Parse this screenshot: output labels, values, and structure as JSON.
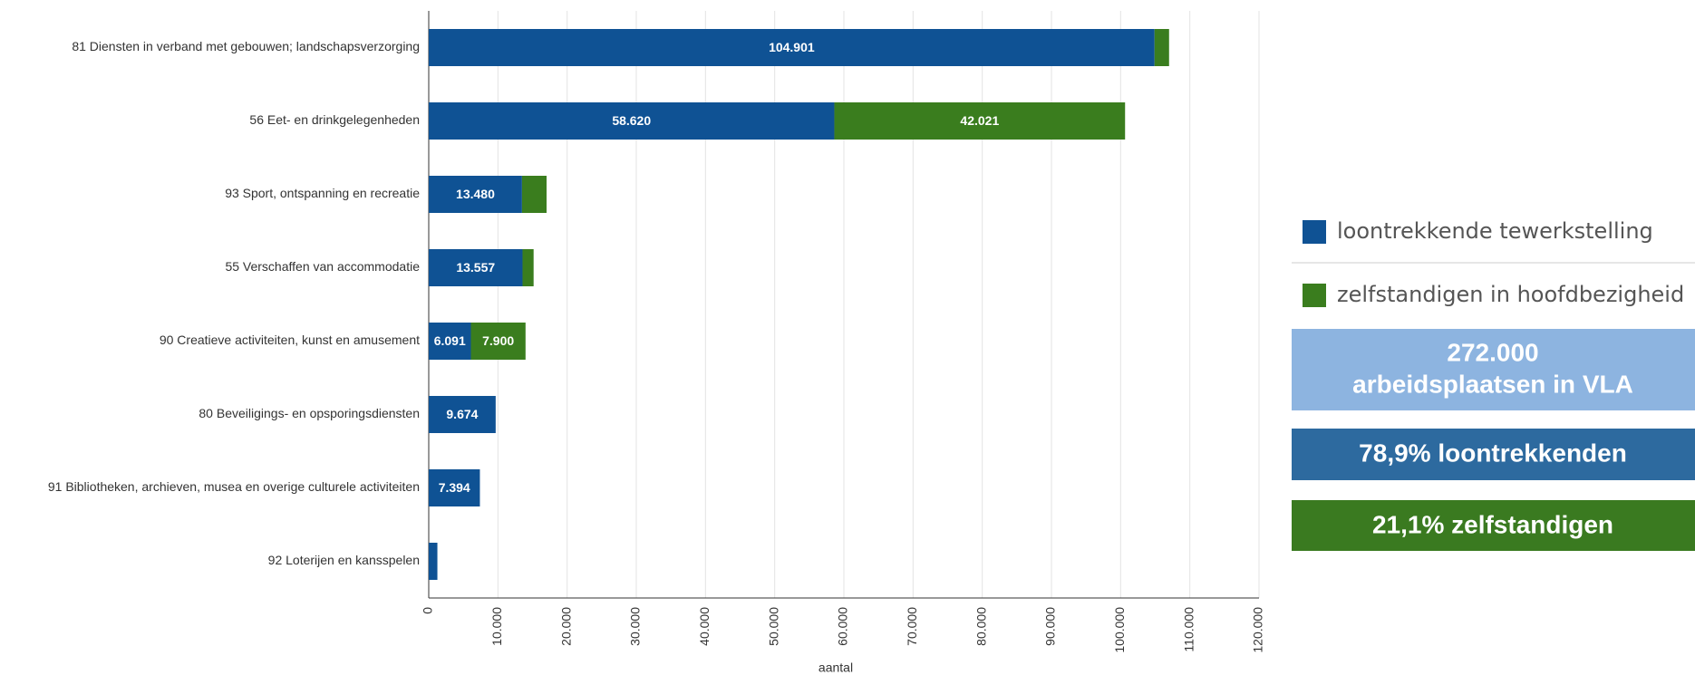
{
  "chart_data": {
    "type": "bar",
    "orientation": "horizontal",
    "stacked": true,
    "categories": [
      "81 Diensten in verband met gebouwen; landschapsverzorging",
      "56 Eet- en drinkgelegenheden",
      "93 Sport, ontspanning en recreatie",
      "55 Verschaffen van accommodatie",
      "90 Creatieve activiteiten, kunst en amusement",
      "80 Beveiligings- en opsporingsdiensten",
      "91 Bibliotheken, archieven, musea en overige culturele activiteiten",
      "92 Loterijen en kansspelen"
    ],
    "series": [
      {
        "name": "loontrekkende tewerkstelling",
        "color": "#0f5294",
        "values": [
          104901,
          58620,
          13480,
          13557,
          6091,
          9674,
          7394,
          1250
        ],
        "value_labels": [
          "104.901",
          "58.620",
          "13.480",
          "13.557",
          "6.091",
          "9.674",
          "7.394",
          null
        ]
      },
      {
        "name": "zelfstandigen in hoofdbezigheid",
        "color": "#3a7d1e",
        "values": [
          2100,
          42021,
          3550,
          1600,
          7900,
          0,
          0,
          0
        ],
        "value_labels": [
          null,
          "42.021",
          null,
          null,
          "7.900",
          null,
          null,
          null
        ]
      }
    ],
    "xlabel": "aantal",
    "xlim": [
      0,
      120000
    ],
    "xticks": [
      0,
      {
        "value": 10000,
        "label": "10.000"
      },
      {
        "value": 20000,
        "label": "20.000"
      },
      {
        "value": 30000,
        "label": "30.000"
      },
      {
        "value": 40000,
        "label": "40.000"
      },
      {
        "value": 50000,
        "label": "50.000"
      },
      {
        "value": 60000,
        "label": "60.000"
      },
      {
        "value": 70000,
        "label": "70.000"
      },
      {
        "value": 80000,
        "label": "80.000"
      },
      {
        "value": 90000,
        "label": "90.000"
      },
      {
        "value": 100000,
        "label": "100.000"
      },
      {
        "value": 110000,
        "label": "110.000"
      },
      {
        "value": 120000,
        "label": "120.000"
      }
    ],
    "grid": true,
    "annotations": [
      "272.000",
      "arbeidsplaatsen in VLA",
      "78,9% loontrekkenden",
      "21,1% zelfstandigen"
    ],
    "annotation_colors": [
      "#8db4e0",
      "#2d6a9f",
      "#3a7a20"
    ]
  }
}
